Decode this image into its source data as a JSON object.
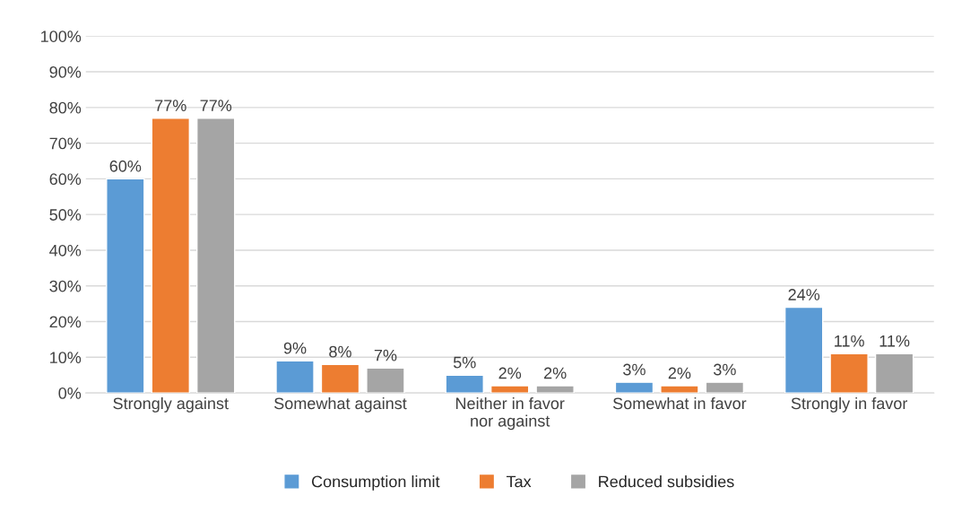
{
  "chart_data": {
    "type": "bar",
    "categories": [
      "Strongly against",
      "Somewhat against",
      "Neither in favor\nnor against",
      "Somewhat in favor",
      "Strongly in favor"
    ],
    "series": [
      {
        "name": "Consumption limit",
        "color": "#5b9bd5",
        "values": [
          60,
          9,
          5,
          3,
          24
        ],
        "value_labels": [
          "60%",
          "9%",
          "5%",
          "3%",
          "24%"
        ]
      },
      {
        "name": "Tax",
        "color": "#ed7d31",
        "values": [
          77,
          8,
          2,
          2,
          11
        ],
        "value_labels": [
          "77%",
          "8%",
          "2%",
          "2%",
          "11%"
        ]
      },
      {
        "name": "Reduced subsidies",
        "color": "#a5a5a5",
        "values": [
          77,
          7,
          2,
          3,
          11
        ],
        "value_labels": [
          "77%",
          "7%",
          "2%",
          "3%",
          "11%"
        ]
      }
    ],
    "ylim": [
      0,
      100
    ],
    "yticks": [
      {
        "value": 0,
        "label": "0%"
      },
      {
        "value": 10,
        "label": "10%"
      },
      {
        "value": 20,
        "label": "20%"
      },
      {
        "value": 30,
        "label": "30%"
      },
      {
        "value": 40,
        "label": "40%"
      },
      {
        "value": 50,
        "label": "50%"
      },
      {
        "value": 60,
        "label": "60%"
      },
      {
        "value": 70,
        "label": "70%"
      },
      {
        "value": 80,
        "label": "80%"
      },
      {
        "value": 90,
        "label": "90%"
      },
      {
        "value": 100,
        "label": "100%"
      }
    ],
    "grid": "y",
    "legend": "bottom"
  }
}
